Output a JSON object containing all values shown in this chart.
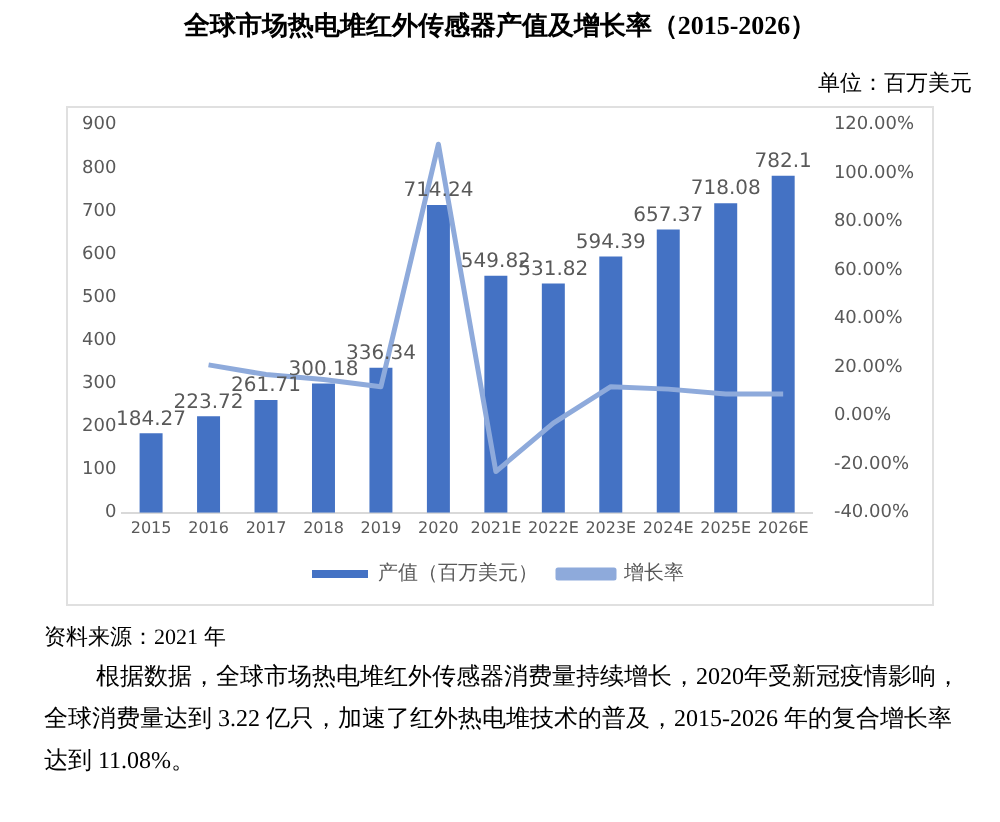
{
  "chart_data": {
    "type": "bar",
    "title": "全球市场热电堆红外传感器产值及增长率（2015-2026）",
    "subtitle": "单位：百万美元",
    "categories": [
      "2015",
      "2016",
      "2017",
      "2018",
      "2019",
      "2020",
      "2021E",
      "2022E",
      "2023E",
      "2024E",
      "2025E",
      "2026E"
    ],
    "series": [
      {
        "name": "产值（百万美元）",
        "color": "#4472c4",
        "values": [
          184.27,
          223.72,
          261.71,
          300.18,
          336.34,
          714.24,
          549.82,
          531.82,
          594.39,
          657.37,
          718.08,
          782.1
        ],
        "value_labels": [
          "184.27",
          "223.72",
          "261.71",
          "300.18",
          "336.34",
          "714.24",
          "549.82",
          "531.82",
          "594.39",
          "657.37",
          "718.08",
          "782.1"
        ]
      },
      {
        "name": "增长率",
        "type": "line",
        "axis": "y2",
        "color": "#8eaadb",
        "values": [
          null,
          21,
          17,
          15,
          12,
          112,
          -23,
          -3,
          12,
          11,
          9,
          9
        ]
      }
    ],
    "ylim": [
      0,
      900
    ],
    "yticks": [
      0,
      100,
      200,
      300,
      400,
      500,
      600,
      700,
      800,
      900
    ],
    "y2lim": [
      -40,
      120
    ],
    "y2ticks": [
      {
        "value": -40,
        "label": "-40.00%"
      },
      {
        "value": -20,
        "label": "-20.00%"
      },
      {
        "value": 0,
        "label": "0.00%"
      },
      {
        "value": 20,
        "label": "20.00%"
      },
      {
        "value": 40,
        "label": "40.00%"
      },
      {
        "value": 60,
        "label": "60.00%"
      },
      {
        "value": 80,
        "label": "80.00%"
      },
      {
        "value": 100,
        "label": "100.00%"
      },
      {
        "value": 120,
        "label": "120.00%"
      }
    ],
    "legend": "bottom",
    "annotations": [
      "资料来源：2021 年",
      "根据数据，全球市场热电堆红外传感器消费量持续增长，2020年受新冠疫情影响，全球消费量达到 3.22 亿只，加速了红外热电堆技术的普及，2015-2026 年的复合增长率达到 11.08%。"
    ]
  }
}
